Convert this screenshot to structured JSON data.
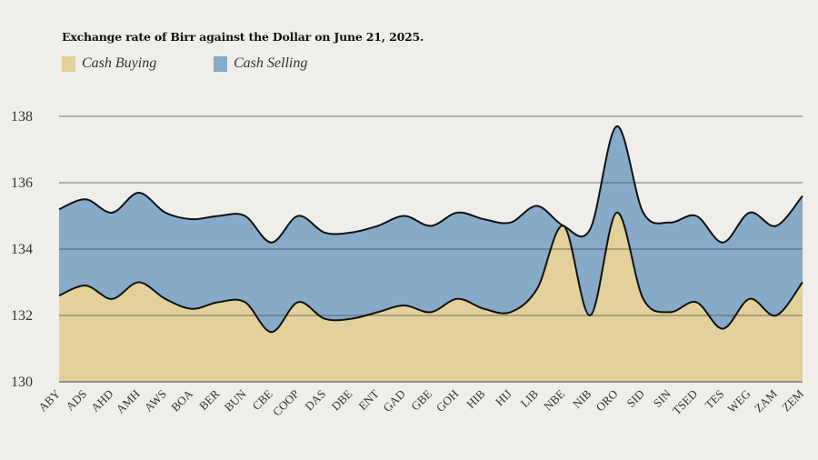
{
  "chart_data": {
    "type": "area",
    "title": "Exchange rate of Birr against the Dollar on June 21, 2025.",
    "xlabel": "",
    "ylabel": "",
    "ylim": [
      130,
      138
    ],
    "yticks": [
      "130",
      "132",
      "134",
      "136",
      "138"
    ],
    "grid": true,
    "legend_position": "top-left",
    "categories": [
      "ABY",
      "ADS",
      "AHD",
      "AMH",
      "AWS",
      "BOA",
      "BER",
      "BUN",
      "CBE",
      "COOP",
      "DAS",
      "DBE",
      "ENT",
      "GAD",
      "GBE",
      "GOH",
      "HIB",
      "HIJ",
      "LIB",
      "NBE",
      "NIB",
      "ORO",
      "SID",
      "SIN",
      "TSED",
      "TES",
      "WEG",
      "ZAM",
      "ZEM"
    ],
    "series": [
      {
        "name": "Cash Buying",
        "color": "#e3d19b",
        "values": [
          132.6,
          132.9,
          132.5,
          133.0,
          132.5,
          132.2,
          132.4,
          132.4,
          131.5,
          132.4,
          131.9,
          131.9,
          132.1,
          132.3,
          132.1,
          132.5,
          132.2,
          132.1,
          132.8,
          134.7,
          132.0,
          135.1,
          132.5,
          132.1,
          132.4,
          131.6,
          132.5,
          132.0,
          133.0
        ]
      },
      {
        "name": "Cash Selling",
        "color": "#86aac8",
        "values": [
          135.2,
          135.5,
          135.1,
          135.7,
          135.1,
          134.9,
          135.0,
          135.0,
          134.2,
          135.0,
          134.5,
          134.5,
          134.7,
          135.0,
          134.7,
          135.1,
          134.9,
          134.8,
          135.3,
          134.7,
          134.6,
          137.7,
          135.1,
          134.8,
          135.0,
          134.2,
          135.1,
          134.7,
          135.6
        ]
      }
    ]
  }
}
